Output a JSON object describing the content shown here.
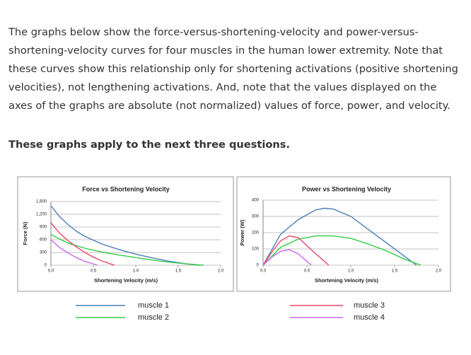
{
  "intro": "The graphs below show the force-versus-shortening-velocity and power-versus-shortening-velocity curves for four muscles in the human lower extremity.  Note that these curves show this relationship only for shortening activations (positive shortening velocities), not lengthening activations.  And, note that the values displayed on the axes of the graphs are absolute (not normalized) values of force, power, and velocity.",
  "prompt": "These graphs apply to the next three questions.",
  "chart_data": [
    {
      "type": "line",
      "title": "Force vs Shortening Velocity",
      "x_label": "Shortening Velocity (m/s)",
      "y_label": "Force (N)",
      "xlim": [
        0,
        2
      ],
      "xticks": [
        {
          "value": 0,
          "label": "0.0"
        },
        0.5,
        {
          "value": 1,
          "label": "1.0"
        },
        1.5,
        {
          "value": 2,
          "label": "2.0"
        }
      ],
      "ylim": [
        0,
        1500
      ],
      "yticks": [
        0,
        300,
        600,
        900,
        {
          "value": 1200,
          "label": "1,200"
        },
        {
          "value": 1500,
          "label": "1,500"
        }
      ],
      "grid": true,
      "series": [
        {
          "name": "muscle 1",
          "color": "#4a7ebb",
          "x": [
            0,
            0.1,
            0.2,
            0.3,
            0.4,
            0.6,
            0.8,
            1.0,
            1.2,
            1.4,
            1.6,
            1.75
          ],
          "values": [
            1400,
            1150,
            960,
            800,
            680,
            500,
            370,
            260,
            170,
            90,
            30,
            0
          ]
        },
        {
          "name": "muscle 2",
          "color": "#33cc44",
          "x": [
            0,
            0.2,
            0.4,
            0.6,
            0.8,
            1.0,
            1.2,
            1.4,
            1.6,
            1.8
          ],
          "values": [
            720,
            520,
            400,
            310,
            240,
            180,
            120,
            70,
            30,
            0
          ]
        },
        {
          "name": "muscle 3",
          "color": "#ee4466",
          "x": [
            0,
            0.1,
            0.2,
            0.3,
            0.4,
            0.5,
            0.6,
            0.75
          ],
          "values": [
            1000,
            760,
            580,
            430,
            300,
            190,
            100,
            0
          ]
        },
        {
          "name": "muscle 4",
          "color": "#cc66ee",
          "x": [
            0,
            0.1,
            0.2,
            0.3,
            0.4,
            0.55
          ],
          "values": [
            600,
            420,
            290,
            180,
            90,
            0
          ]
        }
      ]
    },
    {
      "type": "line",
      "title": "Power vs Shortening Velocity",
      "x_label": "Shortening Velocity (m/s)",
      "y_label": "Power (W)",
      "xlim": [
        0,
        2
      ],
      "xticks": [
        {
          "value": 0,
          "label": "0.0"
        },
        0.5,
        {
          "value": 1,
          "label": "1.0"
        },
        1.5,
        {
          "value": 2,
          "label": "2.0"
        }
      ],
      "ylim": [
        0,
        400
      ],
      "yticks": [
        0,
        100,
        200,
        300,
        400
      ],
      "grid": true,
      "series": [
        {
          "name": "muscle 1",
          "color": "#4a7ebb",
          "x": [
            0,
            0.2,
            0.4,
            0.6,
            0.7,
            0.8,
            1.0,
            1.2,
            1.4,
            1.6,
            1.75
          ],
          "values": [
            0,
            190,
            280,
            340,
            350,
            345,
            300,
            220,
            140,
            60,
            0
          ]
        },
        {
          "name": "muscle 2",
          "color": "#33cc44",
          "x": [
            0,
            0.2,
            0.4,
            0.6,
            0.8,
            1.0,
            1.2,
            1.4,
            1.6,
            1.8
          ],
          "values": [
            0,
            110,
            160,
            180,
            180,
            165,
            130,
            90,
            40,
            0
          ]
        },
        {
          "name": "muscle 3",
          "color": "#ee4466",
          "x": [
            0,
            0.1,
            0.2,
            0.3,
            0.4,
            0.5,
            0.6,
            0.75
          ],
          "values": [
            0,
            80,
            150,
            180,
            170,
            120,
            70,
            0
          ]
        },
        {
          "name": "muscle 4",
          "color": "#cc66ee",
          "x": [
            0,
            0.1,
            0.2,
            0.3,
            0.4,
            0.55
          ],
          "values": [
            0,
            50,
            85,
            95,
            70,
            0
          ]
        }
      ]
    }
  ]
}
